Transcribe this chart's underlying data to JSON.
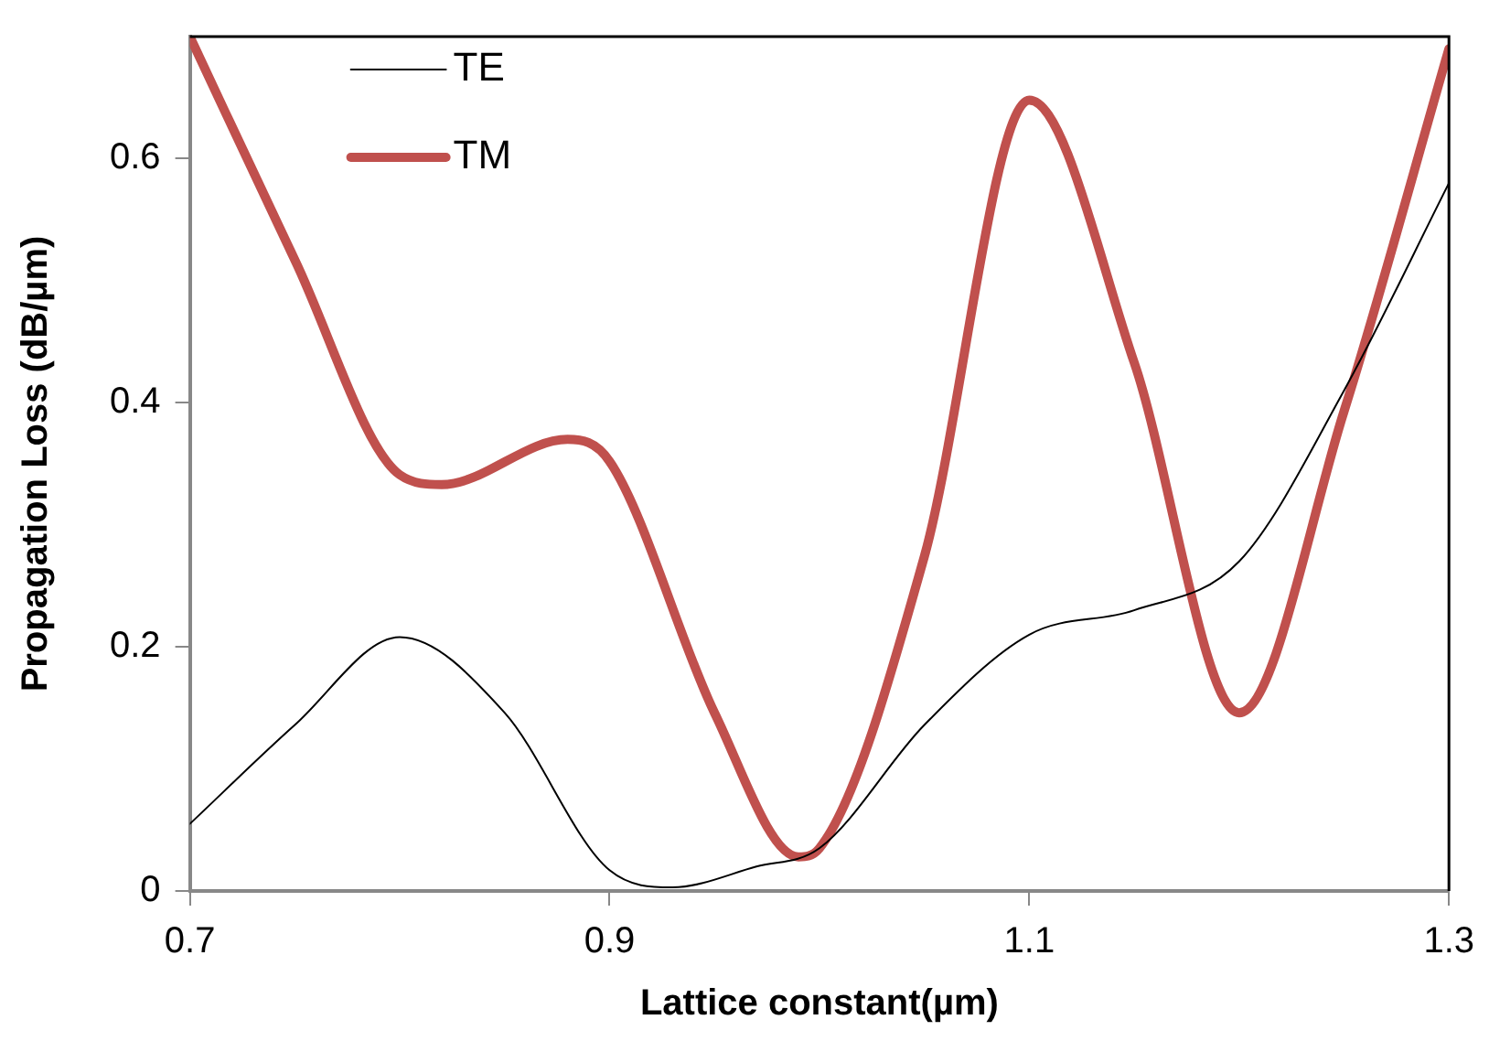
{
  "chart_data": {
    "type": "line",
    "xlabel": "Lattice constant(µm)",
    "ylabel": "Propagation Loss (dB/µm)",
    "xlim": [
      0.7,
      1.3
    ],
    "xticks": [
      0.7,
      0.9,
      1.1,
      1.3
    ],
    "ylim": [
      0,
      0.7
    ],
    "yticks": [
      0,
      0.2,
      0.4,
      0.6
    ],
    "grid": false,
    "legend": "top left",
    "marker": "none",
    "line_style": "solid",
    "series": [
      {
        "name": "TE",
        "color": "#000000",
        "x": [
          0.7,
          0.75,
          0.8,
          0.85,
          0.9,
          0.93,
          0.97,
          1.0,
          1.05,
          1.1,
          1.15,
          1.2,
          1.25,
          1.3
        ],
        "values": [
          0.055,
          0.136,
          0.208,
          0.146,
          0.017,
          0.003,
          0.02,
          0.035,
          0.136,
          0.21,
          0.23,
          0.27,
          0.41,
          0.58
        ]
      },
      {
        "name": "TM",
        "color": "#c0504d",
        "x": [
          0.7,
          0.75,
          0.8,
          0.82,
          0.88,
          0.9,
          0.95,
          0.99,
          1.0,
          1.05,
          1.1,
          1.15,
          1.2,
          1.25,
          1.3
        ],
        "values": [
          0.7,
          0.517,
          0.341,
          0.333,
          0.37,
          0.352,
          0.146,
          0.028,
          0.035,
          0.274,
          0.648,
          0.433,
          0.146,
          0.393,
          0.69
        ]
      }
    ]
  }
}
